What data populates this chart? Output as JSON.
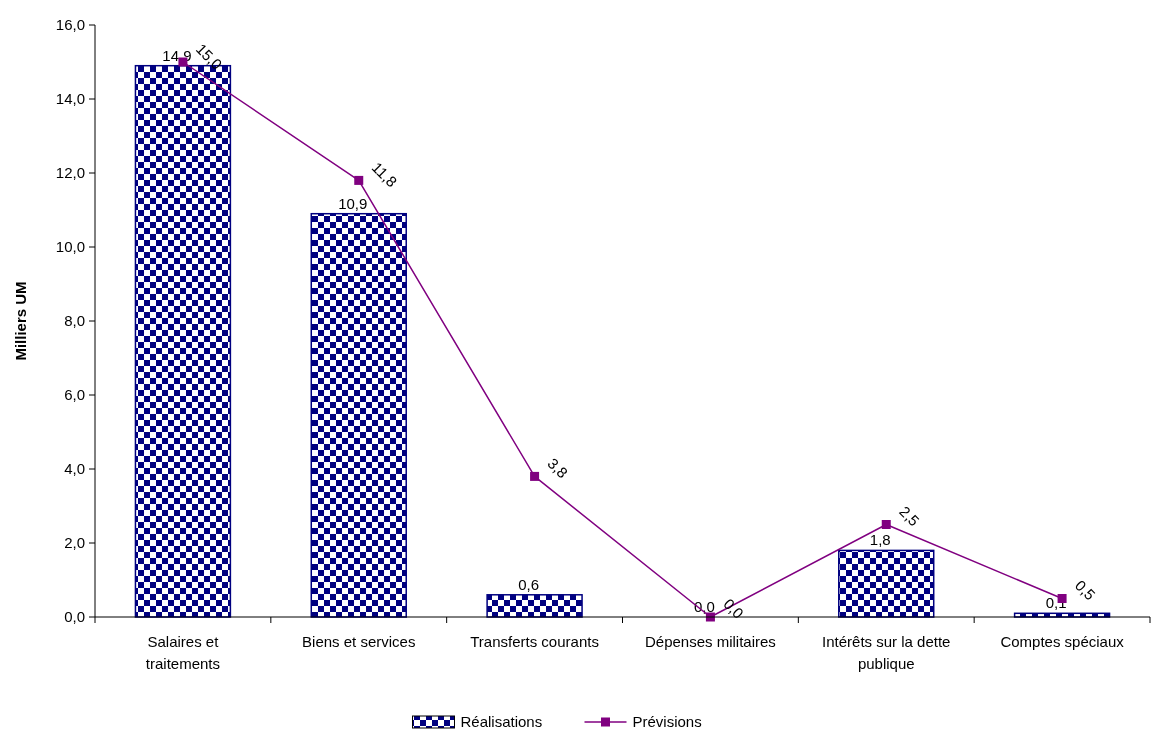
{
  "chart_data": {
    "type": "bar",
    "ylabel": "Milliers UM",
    "categories": [
      "Salaires et traitements",
      "Biens et services",
      "Transferts courants",
      "Dépenses militaires",
      "Intérêts sur la dette publique",
      "Comptes spéciaux"
    ],
    "series": [
      {
        "name": "Réalisations",
        "color": "#000080",
        "values": [
          14.9,
          10.9,
          0.6,
          0.0,
          1.8,
          0.1
        ],
        "value_labels": [
          "14,9",
          "10,9",
          "0,6",
          "0,0",
          "1,8",
          "0,1"
        ]
      },
      {
        "name": "Prévisions",
        "type": "line",
        "color": "#800080",
        "marker": "square",
        "values": [
          15.0,
          11.8,
          3.8,
          0.0,
          2.5,
          0.5
        ],
        "value_labels": [
          "15,0",
          "11,8",
          "3,8",
          "0,0",
          "2,5",
          "0,5"
        ]
      }
    ],
    "ylim": [
      0,
      16
    ],
    "yticks": [
      {
        "value": 0,
        "label": "0,0"
      },
      {
        "value": 2,
        "label": "2,0"
      },
      {
        "value": 4,
        "label": "4,0"
      },
      {
        "value": 6,
        "label": "6,0"
      },
      {
        "value": 8,
        "label": "8,0"
      },
      {
        "value": 10,
        "label": "10,0"
      },
      {
        "value": 12,
        "label": "12,0"
      },
      {
        "value": 14,
        "label": "14,0"
      },
      {
        "value": 16,
        "label": "16,0"
      }
    ],
    "grid": false,
    "legend": "bottom"
  }
}
